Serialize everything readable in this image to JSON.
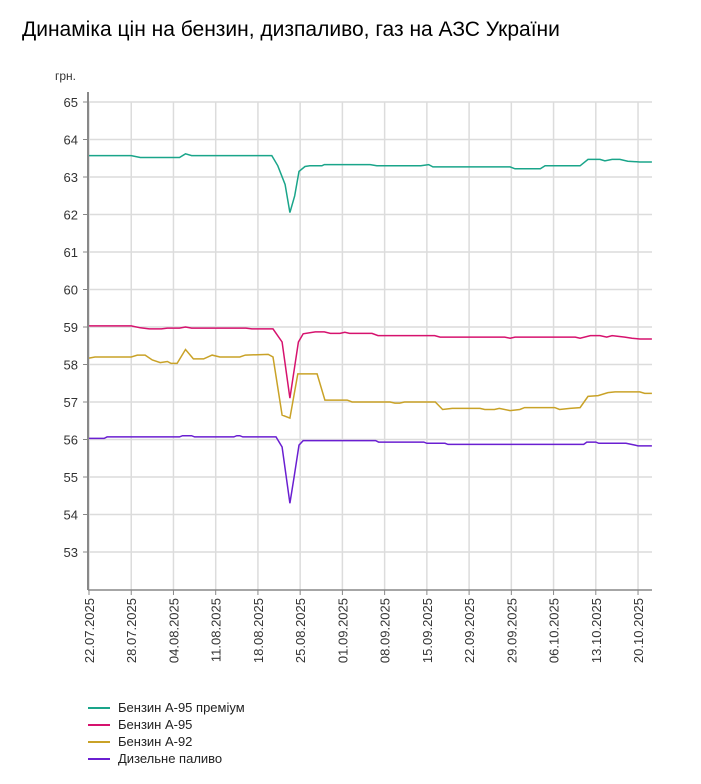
{
  "chart_data": {
    "type": "line",
    "title": "Динаміка цін на бензин, дизпаливо, газ на АЗС України",
    "ylabel": "грн.",
    "xlabel": "",
    "ylim": [
      53,
      65
    ],
    "yticks": [
      53,
      54,
      55,
      56,
      57,
      58,
      59,
      60,
      61,
      62,
      63,
      64,
      65
    ],
    "x_start": "22.07.2025",
    "x_range_days": [
      0,
      93.3
    ],
    "xtick_days": [
      0,
      7,
      14,
      21,
      28,
      35,
      42,
      49,
      56,
      63,
      70,
      77,
      84,
      91
    ],
    "xtick_labels": [
      "22.07.2025",
      "28.07.2025",
      "04.08.2025",
      "11.08.2025",
      "18.08.2025",
      "25.08.2025",
      "01.09.2025",
      "08.09.2025",
      "15.09.2025",
      "22.09.2025",
      "29.09.2025",
      "06.10.2025",
      "13.10.2025",
      "20.10.2025"
    ],
    "grid": true,
    "legend_position": "bottom-left",
    "series": [
      {
        "name": "Бензин А-95 преміум",
        "color": "#1aa58a",
        "points": [
          [
            0,
            63.57
          ],
          [
            7,
            63.57
          ],
          [
            8.5,
            63.52
          ],
          [
            15,
            63.52
          ],
          [
            16,
            63.62
          ],
          [
            17,
            63.57
          ],
          [
            30.3,
            63.57
          ],
          [
            31.3,
            63.3
          ],
          [
            32.5,
            62.8
          ],
          [
            33.3,
            62.05
          ],
          [
            34.1,
            62.5
          ],
          [
            34.8,
            63.15
          ],
          [
            35.8,
            63.28
          ],
          [
            36.6,
            63.3
          ],
          [
            38.6,
            63.3
          ],
          [
            39,
            63.33
          ],
          [
            46.6,
            63.33
          ],
          [
            47.7,
            63.3
          ],
          [
            55,
            63.3
          ],
          [
            56.3,
            63.33
          ],
          [
            57,
            63.27
          ],
          [
            69.8,
            63.27
          ],
          [
            70.6,
            63.22
          ],
          [
            74.8,
            63.22
          ],
          [
            75.6,
            63.3
          ],
          [
            81.4,
            63.3
          ],
          [
            82.7,
            63.47
          ],
          [
            84.7,
            63.47
          ],
          [
            85.5,
            63.43
          ],
          [
            86.7,
            63.47
          ],
          [
            88,
            63.47
          ],
          [
            89.3,
            63.42
          ],
          [
            91.3,
            63.4
          ],
          [
            93.3,
            63.4
          ]
        ]
      },
      {
        "name": "Бензин А-95",
        "color": "#d6126e",
        "points": [
          [
            0,
            59.03
          ],
          [
            7,
            59.03
          ],
          [
            8.5,
            58.98
          ],
          [
            10,
            58.95
          ],
          [
            12,
            58.95
          ],
          [
            13,
            58.97
          ],
          [
            15,
            58.97
          ],
          [
            16,
            59.0
          ],
          [
            17,
            58.97
          ],
          [
            26,
            58.97
          ],
          [
            27,
            58.95
          ],
          [
            30.5,
            58.95
          ],
          [
            32,
            58.6
          ],
          [
            33.3,
            57.1
          ],
          [
            34.7,
            58.6
          ],
          [
            35.5,
            58.82
          ],
          [
            37.5,
            58.87
          ],
          [
            39,
            58.87
          ],
          [
            40,
            58.83
          ],
          [
            41.6,
            58.83
          ],
          [
            42.4,
            58.86
          ],
          [
            43.2,
            58.83
          ],
          [
            46.9,
            58.83
          ],
          [
            47.9,
            58.77
          ],
          [
            57.3,
            58.77
          ],
          [
            58.2,
            58.73
          ],
          [
            68.9,
            58.73
          ],
          [
            69.8,
            58.7
          ],
          [
            70.6,
            58.73
          ],
          [
            80.6,
            58.73
          ],
          [
            81.4,
            58.7
          ],
          [
            83.1,
            58.77
          ],
          [
            84.7,
            58.77
          ],
          [
            85.8,
            58.73
          ],
          [
            86.7,
            58.77
          ],
          [
            88.8,
            58.73
          ],
          [
            90,
            58.7
          ],
          [
            91.3,
            58.68
          ],
          [
            93.3,
            58.68
          ]
        ]
      },
      {
        "name": "Бензин А-92",
        "color": "#c9a227",
        "points": [
          [
            0,
            58.17
          ],
          [
            1,
            58.2
          ],
          [
            7,
            58.2
          ],
          [
            8,
            58.25
          ],
          [
            9.3,
            58.25
          ],
          [
            10.5,
            58.12
          ],
          [
            11.8,
            58.05
          ],
          [
            13,
            58.08
          ],
          [
            13.6,
            58.03
          ],
          [
            14.6,
            58.03
          ],
          [
            16,
            58.4
          ],
          [
            17.3,
            58.15
          ],
          [
            19,
            58.15
          ],
          [
            20.4,
            58.25
          ],
          [
            21.7,
            58.2
          ],
          [
            25,
            58.2
          ],
          [
            25.9,
            58.25
          ],
          [
            29.7,
            58.27
          ],
          [
            30.5,
            58.2
          ],
          [
            32,
            56.65
          ],
          [
            33.3,
            56.57
          ],
          [
            34.6,
            57.75
          ],
          [
            37.8,
            57.75
          ],
          [
            39.1,
            57.05
          ],
          [
            42.8,
            57.05
          ],
          [
            43.6,
            57.0
          ],
          [
            49.9,
            57.0
          ],
          [
            50.7,
            56.97
          ],
          [
            51.5,
            56.97
          ],
          [
            52.3,
            57.0
          ],
          [
            57.4,
            57.0
          ],
          [
            58.6,
            56.8
          ],
          [
            60.2,
            56.83
          ],
          [
            64.8,
            56.83
          ],
          [
            65.6,
            56.8
          ],
          [
            67.2,
            56.8
          ],
          [
            68,
            56.83
          ],
          [
            69.8,
            56.77
          ],
          [
            71.4,
            56.8
          ],
          [
            72.2,
            56.85
          ],
          [
            77.2,
            56.85
          ],
          [
            78,
            56.8
          ],
          [
            79.7,
            56.83
          ],
          [
            81.4,
            56.85
          ],
          [
            82.7,
            57.15
          ],
          [
            84.4,
            57.17
          ],
          [
            86,
            57.25
          ],
          [
            87.2,
            57.27
          ],
          [
            91.3,
            57.27
          ],
          [
            92.1,
            57.23
          ],
          [
            93.3,
            57.23
          ]
        ]
      },
      {
        "name": "Дизельне паливо",
        "color": "#6a1fd1",
        "points": [
          [
            0,
            56.03
          ],
          [
            2.5,
            56.03
          ],
          [
            3,
            56.07
          ],
          [
            15,
            56.07
          ],
          [
            15.5,
            56.1
          ],
          [
            17,
            56.1
          ],
          [
            17.5,
            56.07
          ],
          [
            24,
            56.07
          ],
          [
            24.5,
            56.1
          ],
          [
            25,
            56.1
          ],
          [
            25.5,
            56.07
          ],
          [
            31,
            56.07
          ],
          [
            32,
            55.8
          ],
          [
            33.3,
            54.3
          ],
          [
            34,
            55.0
          ],
          [
            34.8,
            55.85
          ],
          [
            35.5,
            55.97
          ],
          [
            47.5,
            55.97
          ],
          [
            48,
            55.93
          ],
          [
            55.5,
            55.93
          ],
          [
            56,
            55.9
          ],
          [
            59,
            55.9
          ],
          [
            59.5,
            55.87
          ],
          [
            82,
            55.87
          ],
          [
            82.5,
            55.93
          ],
          [
            84,
            55.93
          ],
          [
            84.5,
            55.9
          ],
          [
            89,
            55.9
          ],
          [
            90.5,
            55.85
          ],
          [
            91,
            55.83
          ],
          [
            93.3,
            55.83
          ]
        ]
      }
    ]
  }
}
